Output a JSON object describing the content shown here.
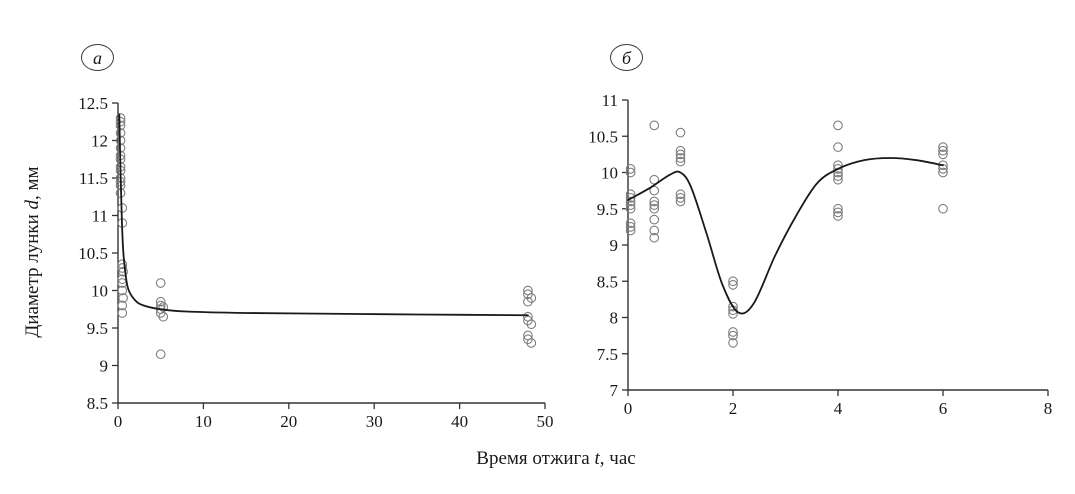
{
  "figure": {
    "xlabel_prefix": "Время отжига ",
    "xlabel_var": "t",
    "xlabel_suffix": ", час",
    "ylabel_prefix": "Диаметр лунки ",
    "ylabel_var": "d",
    "ylabel_suffix": ", мм",
    "panels": [
      {
        "label": "а"
      },
      {
        "label": "б"
      }
    ],
    "colors": {
      "axis": "#333333",
      "marker": "#7d7d7d",
      "curve": "#1a1a1a"
    }
  },
  "chart_data": [
    {
      "type": "scatter",
      "panel": "а",
      "title": "",
      "xlabel": "Время отжига t, час",
      "ylabel": "Диаметр лунки d, мм",
      "xlim": [
        0,
        50
      ],
      "ylim": [
        8.5,
        12.5
      ],
      "xticks": [
        0,
        10,
        20,
        30,
        40,
        50
      ],
      "yticks": [
        8.5,
        9,
        9.5,
        10,
        10.5,
        11,
        11.5,
        12,
        12.5
      ],
      "points": [
        [
          0.3,
          12.3
        ],
        [
          0.3,
          12.25
        ],
        [
          0.3,
          12.2
        ],
        [
          0.3,
          12.1
        ],
        [
          0.3,
          12.0
        ],
        [
          0.3,
          11.9
        ],
        [
          0.3,
          11.8
        ],
        [
          0.3,
          11.75
        ],
        [
          0.3,
          11.65
        ],
        [
          0.3,
          11.6
        ],
        [
          0.3,
          11.5
        ],
        [
          0.3,
          11.45
        ],
        [
          0.3,
          11.4
        ],
        [
          0.3,
          11.3
        ],
        [
          0.5,
          11.1
        ],
        [
          0.5,
          10.9
        ],
        [
          0.5,
          10.35
        ],
        [
          0.5,
          10.3
        ],
        [
          0.6,
          10.25
        ],
        [
          0.5,
          10.15
        ],
        [
          0.5,
          10.1
        ],
        [
          0.5,
          10.0
        ],
        [
          0.6,
          9.9
        ],
        [
          0.5,
          9.8
        ],
        [
          0.5,
          9.7
        ],
        [
          5,
          10.1
        ],
        [
          5,
          9.85
        ],
        [
          5,
          9.8
        ],
        [
          5.3,
          9.78
        ],
        [
          5,
          9.75
        ],
        [
          5,
          9.7
        ],
        [
          5.3,
          9.65
        ],
        [
          5,
          9.15
        ],
        [
          48,
          10.0
        ],
        [
          48,
          9.95
        ],
        [
          48.4,
          9.9
        ],
        [
          48,
          9.85
        ],
        [
          48,
          9.65
        ],
        [
          48,
          9.6
        ],
        [
          48.4,
          9.55
        ],
        [
          48,
          9.4
        ],
        [
          48,
          9.35
        ],
        [
          48.4,
          9.3
        ]
      ],
      "curve": [
        [
          0.15,
          12.35
        ],
        [
          0.3,
          11.55
        ],
        [
          0.45,
          10.95
        ],
        [
          0.6,
          10.55
        ],
        [
          0.85,
          10.25
        ],
        [
          1.2,
          10.02
        ],
        [
          2,
          9.87
        ],
        [
          3,
          9.8
        ],
        [
          5,
          9.75
        ],
        [
          8,
          9.72
        ],
        [
          15,
          9.7
        ],
        [
          25,
          9.69
        ],
        [
          35,
          9.68
        ],
        [
          48,
          9.67
        ]
      ]
    },
    {
      "type": "scatter",
      "panel": "б",
      "title": "",
      "xlabel": "Время отжига t, час",
      "ylabel": "Диаметр лунки d, мм",
      "xlim": [
        0,
        8
      ],
      "ylim": [
        7,
        11
      ],
      "xticks": [
        0,
        2,
        4,
        6,
        8
      ],
      "yticks": [
        7,
        7.5,
        8,
        8.5,
        9,
        9.5,
        10,
        10.5,
        11
      ],
      "points": [
        [
          0.05,
          10.05
        ],
        [
          0.05,
          10.0
        ],
        [
          0.05,
          9.7
        ],
        [
          0.05,
          9.65
        ],
        [
          0.05,
          9.6
        ],
        [
          0.05,
          9.55
        ],
        [
          0.05,
          9.5
        ],
        [
          0.05,
          9.3
        ],
        [
          0.05,
          9.25
        ],
        [
          0.05,
          9.2
        ],
        [
          0.5,
          10.65
        ],
        [
          0.5,
          9.9
        ],
        [
          0.5,
          9.75
        ],
        [
          0.5,
          9.6
        ],
        [
          0.5,
          9.55
        ],
        [
          0.5,
          9.5
        ],
        [
          0.5,
          9.35
        ],
        [
          0.5,
          9.2
        ],
        [
          0.5,
          9.1
        ],
        [
          1,
          10.55
        ],
        [
          1,
          10.3
        ],
        [
          1,
          10.25
        ],
        [
          1,
          10.2
        ],
        [
          1,
          10.15
        ],
        [
          1,
          9.7
        ],
        [
          1,
          9.65
        ],
        [
          1,
          9.6
        ],
        [
          2,
          8.5
        ],
        [
          2,
          8.45
        ],
        [
          2,
          8.15
        ],
        [
          2,
          8.1
        ],
        [
          2,
          8.05
        ],
        [
          2,
          7.8
        ],
        [
          2,
          7.75
        ],
        [
          2,
          7.65
        ],
        [
          4,
          10.65
        ],
        [
          4,
          10.35
        ],
        [
          4,
          10.1
        ],
        [
          4,
          10.05
        ],
        [
          4,
          10.0
        ],
        [
          4,
          9.95
        ],
        [
          4,
          9.9
        ],
        [
          4,
          9.5
        ],
        [
          4,
          9.45
        ],
        [
          4,
          9.4
        ],
        [
          6,
          10.35
        ],
        [
          6,
          10.3
        ],
        [
          6,
          10.25
        ],
        [
          6,
          10.1
        ],
        [
          6,
          10.05
        ],
        [
          6,
          10.0
        ],
        [
          6,
          9.5
        ]
      ],
      "curve": [
        [
          0,
          9.62
        ],
        [
          0.4,
          9.78
        ],
        [
          0.8,
          9.97
        ],
        [
          1.0,
          10.0
        ],
        [
          1.2,
          9.8
        ],
        [
          1.5,
          9.15
        ],
        [
          1.8,
          8.45
        ],
        [
          2.1,
          8.07
        ],
        [
          2.4,
          8.2
        ],
        [
          2.8,
          8.85
        ],
        [
          3.2,
          9.4
        ],
        [
          3.6,
          9.85
        ],
        [
          4.0,
          10.05
        ],
        [
          4.5,
          10.17
        ],
        [
          5.0,
          10.2
        ],
        [
          5.5,
          10.17
        ],
        [
          6.0,
          10.1
        ]
      ]
    }
  ]
}
